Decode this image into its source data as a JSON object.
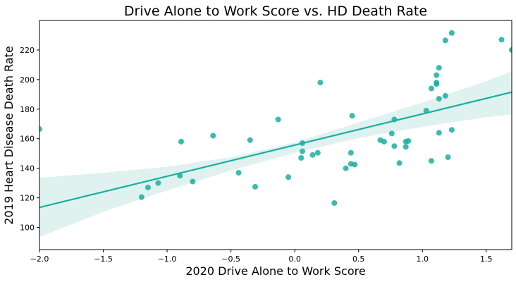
{
  "chart_data": {
    "type": "scatter",
    "title": "Drive Alone to Work Score vs. HD Death Rate",
    "xlabel": "2020 Drive Alone to Work Score",
    "ylabel": "2019 Heart Disease Death Rate",
    "xlim": [
      -2.0,
      1.7
    ],
    "ylim": [
      85,
      240
    ],
    "x_ticks": [
      -2.0,
      -1.5,
      -1.0,
      -0.5,
      0.0,
      0.5,
      1.0,
      1.5
    ],
    "x_tick_labels": [
      "−2.0",
      "−1.5",
      "−1.0",
      "−0.5",
      "0.0",
      "0.5",
      "1.0",
      "1.5"
    ],
    "y_ticks": [
      100,
      120,
      140,
      160,
      180,
      200,
      220
    ],
    "y_tick_labels": [
      "100",
      "120",
      "140",
      "160",
      "180",
      "200",
      "220"
    ],
    "grid": false,
    "colors": {
      "points": "#1aafa0",
      "line": "#1aafa0",
      "band": "#dff2ef"
    },
    "regression": {
      "x": [
        -2.0,
        1.7
      ],
      "y": [
        113.5,
        191.5
      ]
    },
    "confidence_band": {
      "x": [
        -2.0,
        -1.5,
        -1.0,
        -0.5,
        0.0,
        0.5,
        1.0,
        1.5,
        1.7
      ],
      "lower": [
        93.5,
        110.5,
        125.0,
        138.5,
        150.5,
        160.5,
        168.0,
        174.5,
        176.5
      ],
      "upper": [
        133.5,
        137.0,
        141.0,
        147.5,
        157.5,
        171.0,
        184.5,
        199.0,
        205.5
      ]
    },
    "points": [
      {
        "x": -2.0,
        "y": 166.5
      },
      {
        "x": -1.2,
        "y": 120.5
      },
      {
        "x": -1.15,
        "y": 127.0
      },
      {
        "x": -1.07,
        "y": 130.0
      },
      {
        "x": -0.9,
        "y": 135.0
      },
      {
        "x": -0.89,
        "y": 158.0
      },
      {
        "x": -0.8,
        "y": 131.0
      },
      {
        "x": -0.64,
        "y": 162.0
      },
      {
        "x": -0.44,
        "y": 137.0
      },
      {
        "x": -0.35,
        "y": 159.0
      },
      {
        "x": -0.31,
        "y": 127.5
      },
      {
        "x": -0.13,
        "y": 173.0
      },
      {
        "x": -0.05,
        "y": 134.0
      },
      {
        "x": 0.05,
        "y": 147.0
      },
      {
        "x": 0.06,
        "y": 151.5
      },
      {
        "x": 0.06,
        "y": 157.0
      },
      {
        "x": 0.14,
        "y": 149.0
      },
      {
        "x": 0.18,
        "y": 150.5
      },
      {
        "x": 0.2,
        "y": 198.0
      },
      {
        "x": 0.31,
        "y": 116.5
      },
      {
        "x": 0.4,
        "y": 140.0
      },
      {
        "x": 0.44,
        "y": 150.5
      },
      {
        "x": 0.44,
        "y": 143.0
      },
      {
        "x": 0.45,
        "y": 175.5
      },
      {
        "x": 0.47,
        "y": 142.5
      },
      {
        "x": 0.67,
        "y": 159.0
      },
      {
        "x": 0.7,
        "y": 158.0
      },
      {
        "x": 0.76,
        "y": 163.5
      },
      {
        "x": 0.78,
        "y": 173.0
      },
      {
        "x": 0.78,
        "y": 155.0
      },
      {
        "x": 0.82,
        "y": 143.5
      },
      {
        "x": 0.87,
        "y": 158.0
      },
      {
        "x": 0.87,
        "y": 154.5
      },
      {
        "x": 0.89,
        "y": 158.5
      },
      {
        "x": 1.03,
        "y": 179.0
      },
      {
        "x": 1.07,
        "y": 194.0
      },
      {
        "x": 1.07,
        "y": 145.0
      },
      {
        "x": 1.11,
        "y": 197.0
      },
      {
        "x": 1.11,
        "y": 198.0
      },
      {
        "x": 1.11,
        "y": 203.0
      },
      {
        "x": 1.13,
        "y": 208.0
      },
      {
        "x": 1.13,
        "y": 187.0
      },
      {
        "x": 1.13,
        "y": 164.0
      },
      {
        "x": 1.18,
        "y": 189.0
      },
      {
        "x": 1.18,
        "y": 226.5
      },
      {
        "x": 1.2,
        "y": 147.5
      },
      {
        "x": 1.23,
        "y": 231.5
      },
      {
        "x": 1.23,
        "y": 166.0
      },
      {
        "x": 1.62,
        "y": 227.0
      },
      {
        "x": 1.7,
        "y": 220.0
      }
    ]
  }
}
